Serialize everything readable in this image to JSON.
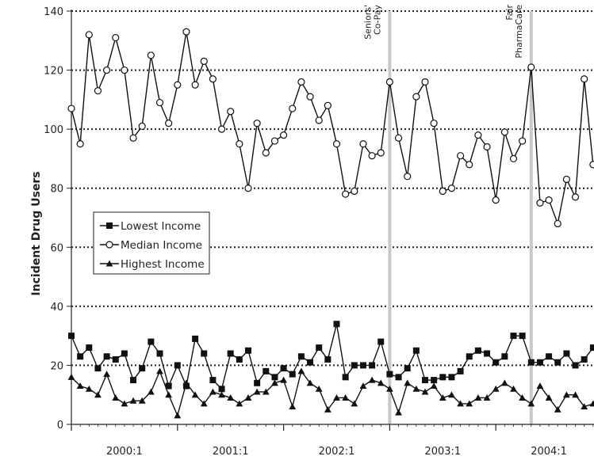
{
  "chart_data": {
    "type": "line",
    "ylabel": "Incident Drug Users",
    "ylim": [
      0,
      140
    ],
    "yticks": [
      0,
      20,
      40,
      60,
      80,
      100,
      120,
      140
    ],
    "grid": "horizontal dotted",
    "legend_position": "left-middle",
    "x_tick_labels": [
      "2000:1",
      "2001:1",
      "2002:1",
      "2003:1",
      "2004:1"
    ],
    "x_tick_index": [
      0,
      12,
      24,
      36,
      48
    ],
    "x_max_index": 59,
    "annotations": [
      {
        "label_lines": [
          "Seniors'",
          "Co-Pay"
        ],
        "x_index": 36
      },
      {
        "label_lines": [
          "Fair",
          "PharmaCare"
        ],
        "x_index": 52
      }
    ],
    "series": [
      {
        "name": "Lowest Income",
        "marker": "square",
        "values": [
          30,
          23,
          26,
          19,
          23,
          22,
          24,
          15,
          19,
          28,
          24,
          13,
          20,
          13,
          29,
          24,
          15,
          12,
          24,
          22,
          25,
          14,
          18,
          16,
          19,
          17,
          23,
          21,
          26,
          22,
          34,
          16,
          20,
          20,
          20,
          28,
          17,
          16,
          19,
          25,
          15,
          15,
          16,
          16,
          18,
          23,
          25,
          24,
          21,
          23,
          30,
          30,
          21,
          21,
          23,
          21,
          24,
          20,
          22,
          26
        ]
      },
      {
        "name": "Median Income",
        "marker": "circle",
        "values": [
          107,
          95,
          132,
          113,
          120,
          131,
          120,
          97,
          101,
          125,
          109,
          102,
          115,
          133,
          115,
          123,
          117,
          100,
          106,
          95,
          80,
          102,
          92,
          96,
          98,
          107,
          116,
          111,
          103,
          108,
          95,
          78,
          79,
          95,
          91,
          92,
          116,
          97,
          84,
          111,
          116,
          102,
          79,
          80,
          91,
          88,
          98,
          94,
          76,
          99,
          90,
          96,
          121,
          75,
          76,
          68,
          83,
          77,
          117,
          88
        ]
      },
      {
        "name": "Highest Income",
        "marker": "triangle",
        "values": [
          16,
          13,
          12,
          10,
          17,
          9,
          7,
          8,
          8,
          11,
          18,
          10,
          3,
          14,
          10,
          7,
          11,
          10,
          9,
          7,
          9,
          11,
          11,
          14,
          15,
          6,
          18,
          14,
          12,
          5,
          9,
          9,
          7,
          13,
          15,
          14,
          12,
          4,
          14,
          12,
          11,
          13,
          9,
          10,
          7,
          7,
          9,
          9,
          12,
          14,
          12,
          9,
          7,
          13,
          9,
          5,
          10,
          10,
          6,
          7
        ]
      }
    ]
  }
}
